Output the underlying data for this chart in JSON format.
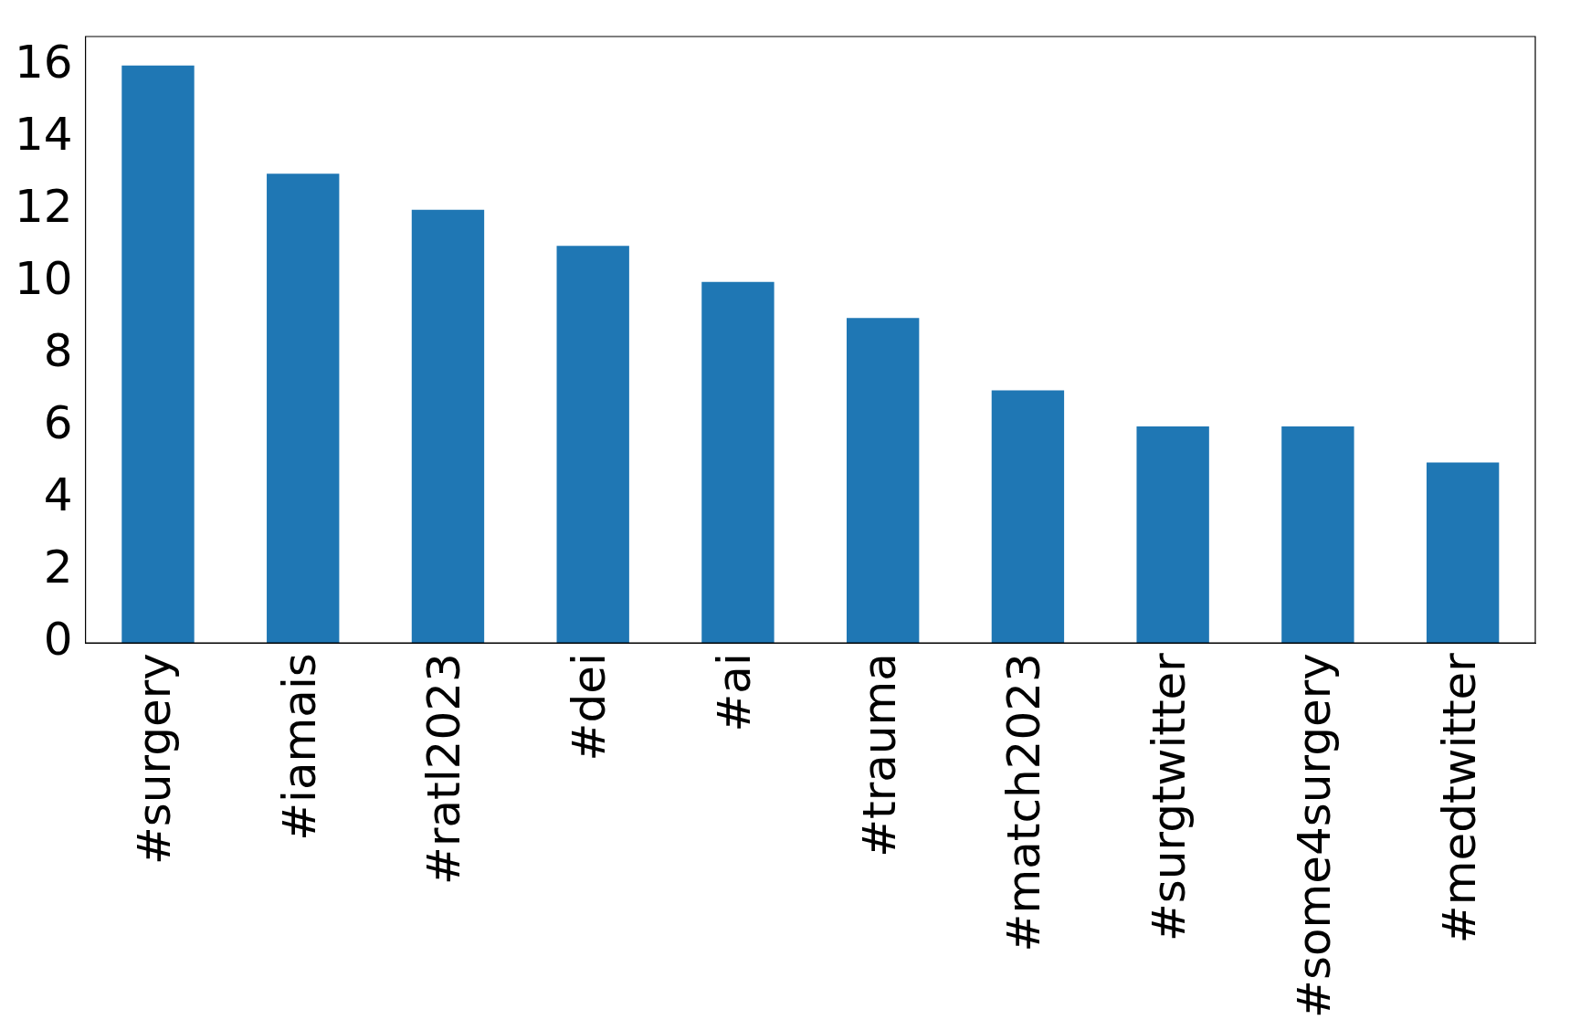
{
  "chart_data": {
    "type": "bar",
    "categories": [
      "#surgery",
      "#iamais",
      "#ratl2023",
      "#dei",
      "#ai",
      "#trauma",
      "#match2023",
      "#surgtwitter",
      "#some4surgery",
      "#medtwitter"
    ],
    "values": [
      16,
      13,
      12,
      11,
      10,
      9,
      7,
      6,
      6,
      5
    ],
    "color": "#1f77b4",
    "ylim": [
      0,
      16.8
    ],
    "yticks": [
      0,
      2,
      4,
      6,
      8,
      10,
      12,
      14,
      16
    ],
    "grid": false,
    "legend": false
  }
}
